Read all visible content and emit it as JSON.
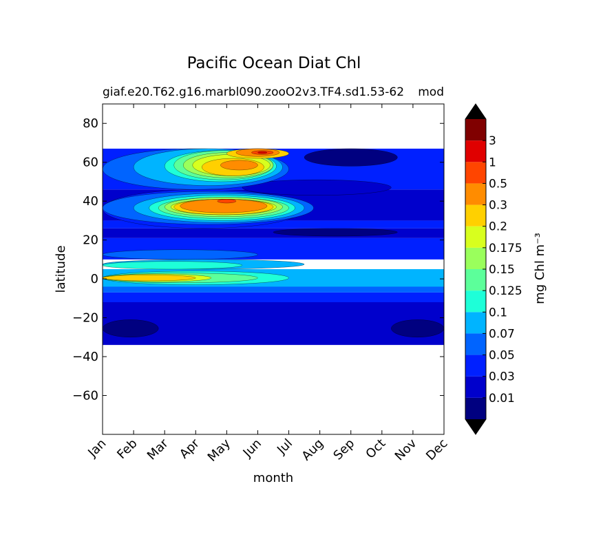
{
  "chart_data": {
    "type": "heatmap",
    "title": "Pacific Ocean Diat Chl",
    "subtitle_left": "giaf.e20.T62.g16.marbl090.zooO2v3.TF4.sd1.53-62",
    "subtitle_right": "mod",
    "xlabel": "month",
    "ylabel": "latitude",
    "x_categories": [
      "Jan",
      "Feb",
      "Mar",
      "Apr",
      "May",
      "Jun",
      "Jul",
      "Aug",
      "Sep",
      "Oct",
      "Nov",
      "Dec"
    ],
    "xlim": [
      1,
      12
    ],
    "ylim": [
      -80,
      90
    ],
    "y_ticks": [
      80,
      60,
      40,
      20,
      0,
      -20,
      -40,
      -60
    ],
    "y_tick_labels": [
      "80",
      "60",
      "40",
      "20",
      "0",
      "−20",
      "−40",
      "−60"
    ],
    "data_lat_range": [
      -34,
      67
    ],
    "grid": false,
    "colorbar": {
      "label": "mg Chl m⁻³",
      "levels": [
        0,
        0.01,
        0.03,
        0.05,
        0.07,
        0.1,
        0.125,
        0.15,
        0.175,
        0.2,
        0.3,
        0.5,
        1,
        3,
        5
      ],
      "tick_labels": [
        "0.01",
        "0.03",
        "0.05",
        "0.07",
        "0.1",
        "0.125",
        "0.15",
        "0.175",
        "0.2",
        "0.3",
        "0.5",
        "1",
        "3"
      ],
      "colors": [
        "#000080",
        "#0000cc",
        "#0020ff",
        "#0064ff",
        "#00b4ff",
        "#1effd8",
        "#5cff9a",
        "#9aff5c",
        "#d8ff1e",
        "#ffd000",
        "#ff8c00",
        "#ff4500",
        "#e00000",
        "#800000"
      ],
      "extend": "both",
      "under_color": "#000000",
      "over_color": "#000000"
    },
    "features": [
      {
        "lat": [
          67,
          90
        ],
        "month": [
          1,
          12
        ],
        "level": null
      },
      {
        "lat": [
          -80,
          -34
        ],
        "month": [
          1,
          12
        ],
        "level": null
      },
      {
        "lat": [
          -34,
          -12
        ],
        "month": [
          1,
          12
        ],
        "level": 1
      },
      {
        "lat": [
          -30,
          -21
        ],
        "month": [
          1,
          2.8
        ],
        "level": 0
      },
      {
        "lat": [
          -30,
          -21
        ],
        "month": [
          10.3,
          12
        ],
        "level": 0
      },
      {
        "lat": [
          -12,
          -7
        ],
        "month": [
          1,
          12
        ],
        "level": 2
      },
      {
        "lat": [
          -7,
          -2
        ],
        "month": [
          1,
          12
        ],
        "level": 3
      },
      {
        "lat": [
          -4,
          5
        ],
        "month": [
          1,
          12
        ],
        "level": 4
      },
      {
        "lat": [
          -3,
          4
        ],
        "month": [
          1,
          7
        ],
        "level": 5
      },
      {
        "lat": [
          -2,
          3
        ],
        "month": [
          1,
          6
        ],
        "level": 6
      },
      {
        "lat": [
          -1.5,
          2.5
        ],
        "month": [
          1,
          4.5
        ],
        "level": 8
      },
      {
        "lat": [
          -1,
          2
        ],
        "month": [
          1,
          4
        ],
        "level": 9
      },
      {
        "lat": [
          5,
          10
        ],
        "month": [
          1,
          7.5
        ],
        "level": 4
      },
      {
        "lat": [
          5,
          9
        ],
        "month": [
          1,
          5.5
        ],
        "level": 5
      },
      {
        "lat": [
          10,
          21
        ],
        "month": [
          1,
          12
        ],
        "level": 2
      },
      {
        "lat": [
          10,
          15
        ],
        "month": [
          1,
          6
        ],
        "level": 3
      },
      {
        "lat": [
          21,
          26
        ],
        "month": [
          1,
          12
        ],
        "level": 1
      },
      {
        "lat": [
          22,
          26
        ],
        "month": [
          6.5,
          10.5
        ],
        "level": 0
      },
      {
        "lat": [
          26,
          30
        ],
        "month": [
          1,
          12
        ],
        "level": 2
      },
      {
        "lat": [
          30,
          46
        ],
        "month": [
          1,
          12
        ],
        "level": 1
      },
      {
        "lat": [
          26,
          46
        ],
        "month": [
          1,
          7.5
        ],
        "level": 2
      },
      {
        "lat": [
          28,
          45
        ],
        "month": [
          1,
          7.8
        ],
        "level": 3
      },
      {
        "lat": [
          29,
          44
        ],
        "month": [
          2,
          7.5
        ],
        "level": 4
      },
      {
        "lat": [
          30,
          43
        ],
        "month": [
          2.5,
          7.2
        ],
        "level": 5
      },
      {
        "lat": [
          31,
          42
        ],
        "month": [
          2.8,
          7
        ],
        "level": 6
      },
      {
        "lat": [
          32,
          42
        ],
        "month": [
          3,
          6.8
        ],
        "level": 7
      },
      {
        "lat": [
          33,
          41
        ],
        "month": [
          3.2,
          6.6
        ],
        "level": 8
      },
      {
        "lat": [
          33,
          41
        ],
        "month": [
          3.3,
          6.5
        ],
        "level": 9
      },
      {
        "lat": [
          34,
          41
        ],
        "month": [
          3.5,
          6.3
        ],
        "level": 10
      },
      {
        "lat": [
          39,
          41
        ],
        "month": [
          4.7,
          5.3
        ],
        "level": 11
      },
      {
        "lat": [
          46,
          67
        ],
        "month": [
          1,
          12
        ],
        "level": 2
      },
      {
        "lat": [
          43,
          51
        ],
        "month": [
          5.5,
          10.3
        ],
        "level": 1
      },
      {
        "lat": [
          46,
          67
        ],
        "month": [
          1,
          7
        ],
        "level": 3
      },
      {
        "lat": [
          48,
          67
        ],
        "month": [
          2,
          6.8
        ],
        "level": 4
      },
      {
        "lat": [
          50,
          66
        ],
        "month": [
          3,
          6.6
        ],
        "level": 5
      },
      {
        "lat": [
          51,
          66
        ],
        "month": [
          3.3,
          6.5
        ],
        "level": 6
      },
      {
        "lat": [
          52,
          65
        ],
        "month": [
          3.6,
          6.5
        ],
        "level": 7
      },
      {
        "lat": [
          53,
          64
        ],
        "month": [
          3.9,
          6.4
        ],
        "level": 8
      },
      {
        "lat": [
          53,
          62
        ],
        "month": [
          4.2,
          6.2
        ],
        "level": 9
      },
      {
        "lat": [
          56,
          61
        ],
        "month": [
          4.8,
          6
        ],
        "level": 10
      },
      {
        "lat": [
          62,
          67
        ],
        "month": [
          5,
          7
        ],
        "level": 9
      },
      {
        "lat": [
          63,
          67
        ],
        "month": [
          5.3,
          6.7
        ],
        "level": 10
      },
      {
        "lat": [
          64,
          66
        ],
        "month": [
          5.8,
          6.5
        ],
        "level": 11
      },
      {
        "lat": [
          64.5,
          65.5
        ],
        "month": [
          6,
          6.3
        ],
        "level": 12
      },
      {
        "lat": [
          58,
          67
        ],
        "month": [
          7.5,
          10.5
        ],
        "level": 0
      }
    ]
  }
}
